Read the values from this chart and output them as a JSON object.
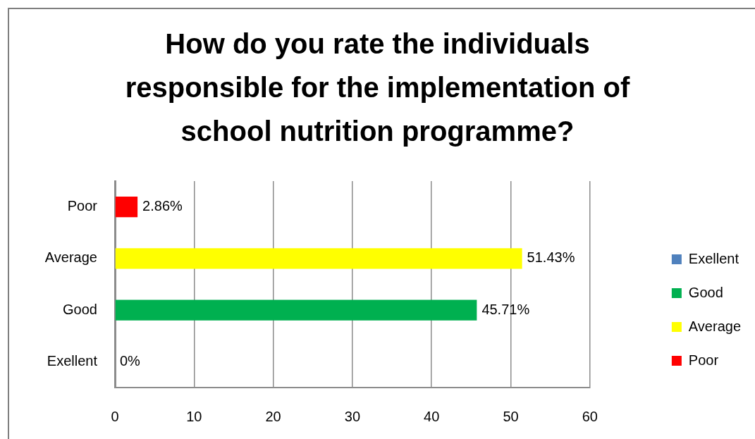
{
  "chart_data": {
    "type": "bar",
    "orientation": "horizontal",
    "title": "How do you rate the individuals responsible for the implementation of school nutrition programme?",
    "categories": [
      "Poor",
      "Average",
      "Good",
      "Exellent"
    ],
    "series": [
      {
        "name": "Exellent",
        "color": "#4f81bd",
        "values": [
          null,
          null,
          null,
          0
        ],
        "value_labels": [
          null,
          null,
          null,
          "0%"
        ]
      },
      {
        "name": "Good",
        "color": "#00b050",
        "values": [
          null,
          null,
          45.71,
          null
        ],
        "value_labels": [
          null,
          null,
          "45.71%",
          null
        ]
      },
      {
        "name": "Average",
        "color": "#ffff00",
        "values": [
          null,
          51.43,
          null,
          null
        ],
        "value_labels": [
          null,
          "51.43%",
          null,
          null
        ]
      },
      {
        "name": "Poor",
        "color": "#ff0000",
        "values": [
          2.86,
          null,
          null,
          null
        ],
        "value_labels": [
          "2.86%",
          null,
          null,
          null
        ]
      }
    ],
    "xlim": [
      0,
      60
    ],
    "xticks": [
      0,
      10,
      20,
      30,
      40,
      50,
      60
    ],
    "grid": "x",
    "legend": "right"
  }
}
